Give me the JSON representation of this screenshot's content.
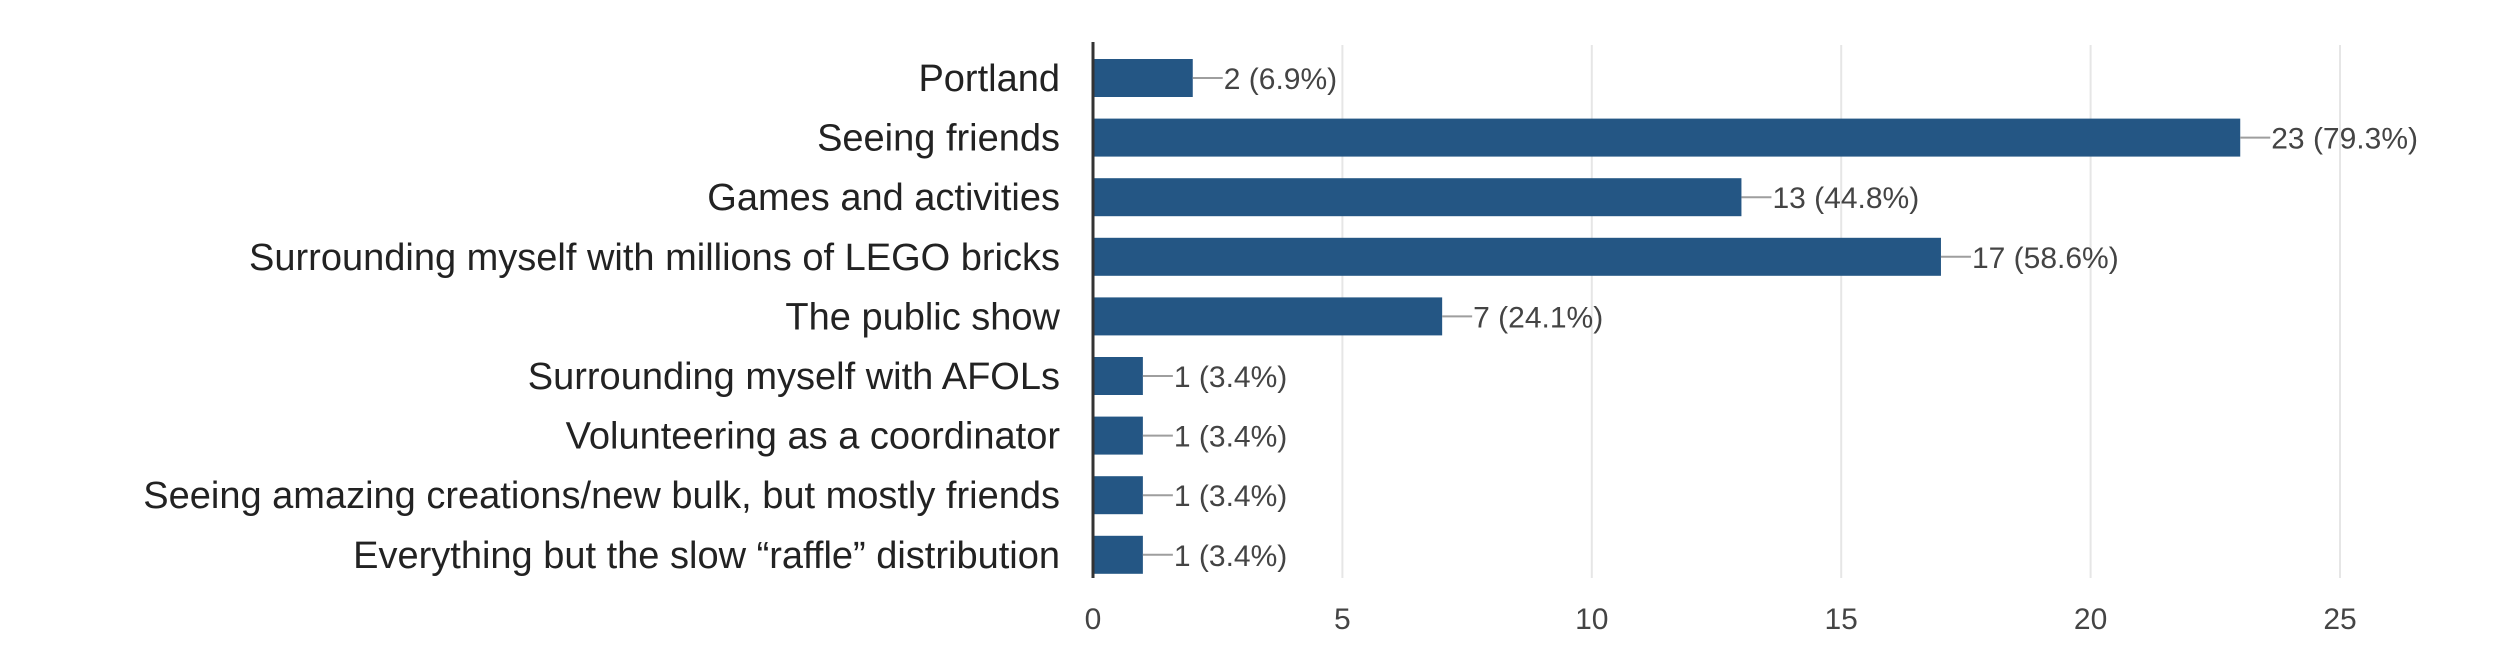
{
  "chart_data": {
    "type": "bar",
    "orientation": "horizontal",
    "title": "",
    "xlabel": "",
    "ylabel": "",
    "categories": [
      "Portland",
      "Seeing friends",
      "Games and activities",
      "Surrounding myself with millions of LEGO bricks",
      "The public show",
      "Surrounding myself with AFOLs",
      "Volunteering as a coordinator",
      "Seeing amazing creations/new bulk, but mostly friends",
      "Everything but the slow “raffle” distribution"
    ],
    "values": [
      2,
      23,
      13,
      17,
      7,
      1,
      1,
      1,
      1
    ],
    "data_labels": [
      "2 (6.9%)",
      "23 (79.3%)",
      "13 (44.8%)",
      "17 (58.6%)",
      "7 (24.1%)",
      "1 (3.4%)",
      "1 (3.4%)",
      "1 (3.4%)",
      "1 (3.4%)"
    ],
    "xlim": [
      0,
      25
    ],
    "x_ticks": [
      0,
      5,
      10,
      15,
      20,
      25
    ],
    "x_tick_labels": [
      "0",
      "5",
      "10",
      "15",
      "20",
      "25"
    ],
    "grid": true,
    "legend": "none",
    "colors": {
      "bar": "#245684",
      "grid": "#e6e6e6",
      "axis": "#333333",
      "leader": "#9e9e9e"
    }
  }
}
